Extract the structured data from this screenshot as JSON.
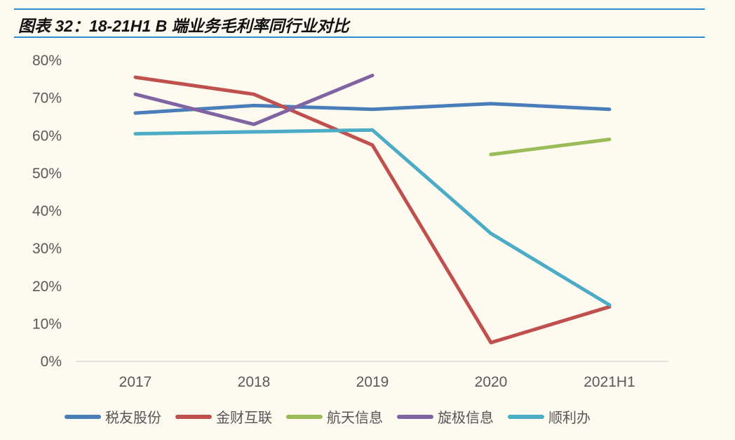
{
  "title": "图表 32：18-21H1 B 端业务毛利率同行业对比",
  "chart_data": {
    "type": "line",
    "title": "图表 32：18-21H1 B 端业务毛利率同行业对比",
    "xlabel": "",
    "ylabel": "",
    "categories": [
      "2017",
      "2018",
      "2019",
      "2020",
      "2021H1"
    ],
    "y_ticks": [
      "0%",
      "10%",
      "20%",
      "30%",
      "40%",
      "50%",
      "60%",
      "70%",
      "80%"
    ],
    "ylim": [
      0,
      80
    ],
    "grid": false,
    "legend_position": "bottom",
    "series": [
      {
        "name": "税友股份",
        "color": "#4a7ebb",
        "values": [
          66,
          68,
          67,
          68.5,
          67
        ]
      },
      {
        "name": "金财互联",
        "color": "#c0504d",
        "values": [
          75.5,
          71,
          57.5,
          5,
          14.5
        ]
      },
      {
        "name": "航天信息",
        "color": "#9bbb59",
        "values": [
          null,
          null,
          null,
          55,
          59
        ]
      },
      {
        "name": "旋极信息",
        "color": "#8064a2",
        "values": [
          71,
          63,
          76,
          null,
          null
        ]
      },
      {
        "name": "顺利办",
        "color": "#4bacc6",
        "values": [
          60.5,
          61,
          61.5,
          34,
          15
        ]
      }
    ]
  }
}
